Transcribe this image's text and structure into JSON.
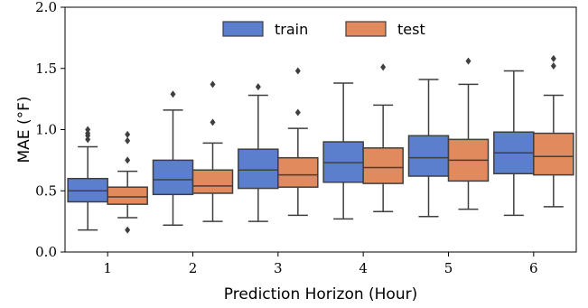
{
  "chart_data": {
    "type": "box",
    "xlabel": "Prediction Horizon (Hour)",
    "ylabel": "MAE (°F)",
    "ylim": [
      0,
      2
    ],
    "yticks": [
      "0.0",
      "0.5",
      "1.0",
      "1.5",
      "2.0"
    ],
    "categories": [
      "1",
      "2",
      "3",
      "4",
      "5",
      "6"
    ],
    "legend_position": "top-center",
    "grid": false,
    "series": [
      {
        "name": "train",
        "color": "#5b7fcd",
        "boxes": [
          {
            "whisker_low": 0.18,
            "q1": 0.41,
            "median": 0.5,
            "q3": 0.6,
            "whisker_high": 0.86,
            "outliers": [
              0.92,
              0.95,
              0.97,
              1.0
            ]
          },
          {
            "whisker_low": 0.22,
            "q1": 0.47,
            "median": 0.59,
            "q3": 0.75,
            "whisker_high": 1.16,
            "outliers": [
              1.29
            ]
          },
          {
            "whisker_low": 0.25,
            "q1": 0.52,
            "median": 0.67,
            "q3": 0.84,
            "whisker_high": 1.28,
            "outliers": [
              1.35
            ]
          },
          {
            "whisker_low": 0.27,
            "q1": 0.57,
            "median": 0.73,
            "q3": 0.9,
            "whisker_high": 1.38,
            "outliers": []
          },
          {
            "whisker_low": 0.29,
            "q1": 0.62,
            "median": 0.77,
            "q3": 0.95,
            "whisker_high": 1.41,
            "outliers": []
          },
          {
            "whisker_low": 0.3,
            "q1": 0.64,
            "median": 0.81,
            "q3": 0.98,
            "whisker_high": 1.48,
            "outliers": []
          }
        ]
      },
      {
        "name": "test",
        "color": "#e08a5e",
        "boxes": [
          {
            "whisker_low": 0.28,
            "q1": 0.39,
            "median": 0.45,
            "q3": 0.53,
            "whisker_high": 0.66,
            "outliers": [
              0.18,
              0.75,
              0.91,
              0.96
            ]
          },
          {
            "whisker_low": 0.25,
            "q1": 0.48,
            "median": 0.54,
            "q3": 0.67,
            "whisker_high": 0.89,
            "outliers": [
              1.06,
              1.37
            ]
          },
          {
            "whisker_low": 0.3,
            "q1": 0.53,
            "median": 0.63,
            "q3": 0.77,
            "whisker_high": 1.01,
            "outliers": [
              1.14,
              1.48
            ]
          },
          {
            "whisker_low": 0.33,
            "q1": 0.56,
            "median": 0.69,
            "q3": 0.85,
            "whisker_high": 1.2,
            "outliers": [
              1.51
            ]
          },
          {
            "whisker_low": 0.35,
            "q1": 0.58,
            "median": 0.75,
            "q3": 0.92,
            "whisker_high": 1.37,
            "outliers": [
              1.56
            ]
          },
          {
            "whisker_low": 0.37,
            "q1": 0.63,
            "median": 0.78,
            "q3": 0.97,
            "whisker_high": 1.28,
            "outliers": [
              1.52,
              1.58
            ]
          }
        ]
      }
    ]
  }
}
